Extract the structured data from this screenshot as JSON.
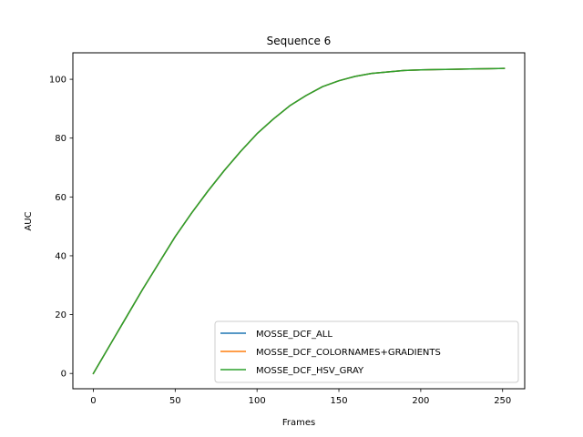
{
  "chart_data": {
    "type": "line",
    "title": "Sequence 6",
    "xlabel": "Frames",
    "ylabel": "AUC",
    "xlim": [
      -12.5,
      263.5
    ],
    "ylim": [
      -5.2,
      109
    ],
    "xticks": [
      0,
      50,
      100,
      150,
      200,
      250
    ],
    "yticks": [
      0,
      20,
      40,
      60,
      80,
      100
    ],
    "grid": false,
    "legend_position": "lower-right",
    "x": [
      0,
      10,
      20,
      30,
      40,
      50,
      60,
      70,
      80,
      90,
      100,
      110,
      120,
      130,
      140,
      150,
      160,
      170,
      180,
      190,
      200,
      210,
      220,
      230,
      240,
      251
    ],
    "series": [
      {
        "name": "MOSSE_DCF_ALL",
        "color": "#1f77b4",
        "values": [
          0,
          9.5,
          19,
          28.5,
          37.5,
          46.5,
          54.5,
          62,
          69,
          75.5,
          81.5,
          86.5,
          91,
          94.5,
          97.5,
          99.5,
          101,
          102,
          102.5,
          103,
          103.2,
          103.3,
          103.4,
          103.5,
          103.6,
          103.7
        ]
      },
      {
        "name": "MOSSE_DCF_COLORNAMES+GRADIENTS",
        "color": "#ff7f0e",
        "values": [
          0,
          9.5,
          19,
          28.5,
          37.5,
          46.5,
          54.5,
          62,
          69,
          75.5,
          81.5,
          86.5,
          91,
          94.5,
          97.5,
          99.5,
          101,
          102,
          102.5,
          103,
          103.2,
          103.3,
          103.4,
          103.5,
          103.6,
          103.7
        ]
      },
      {
        "name": "MOSSE_DCF_HSV_GRAY",
        "color": "#2ca02c",
        "values": [
          0,
          9.5,
          19,
          28.5,
          37.5,
          46.5,
          54.5,
          62,
          69,
          75.5,
          81.5,
          86.5,
          91,
          94.5,
          97.5,
          99.5,
          101,
          102,
          102.5,
          103,
          103.2,
          103.3,
          103.4,
          103.5,
          103.6,
          103.7
        ]
      }
    ]
  }
}
